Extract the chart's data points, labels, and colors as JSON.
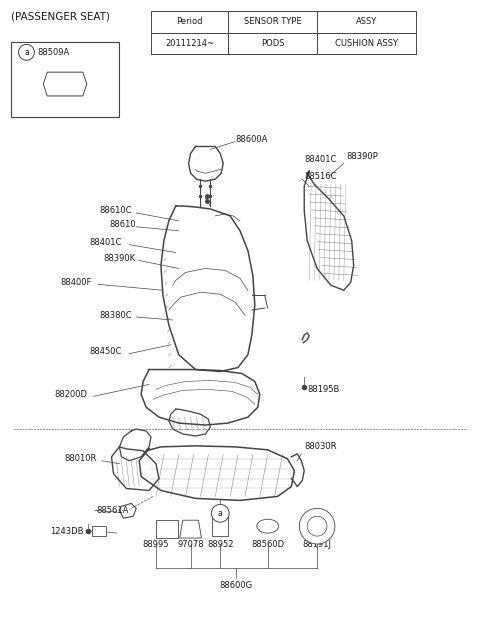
{
  "title": "(PASSENGER SEAT)",
  "bg_color": "#ffffff",
  "table": {
    "headers": [
      "Period",
      "SENSOR TYPE",
      "ASSY"
    ],
    "rows": [
      [
        "20111214~",
        "PODS",
        "CUSHION ASSY"
      ]
    ]
  },
  "font_color": "#1a1a1a",
  "line_color": "#444444",
  "font_size": 6.0,
  "title_font_size": 7.5
}
